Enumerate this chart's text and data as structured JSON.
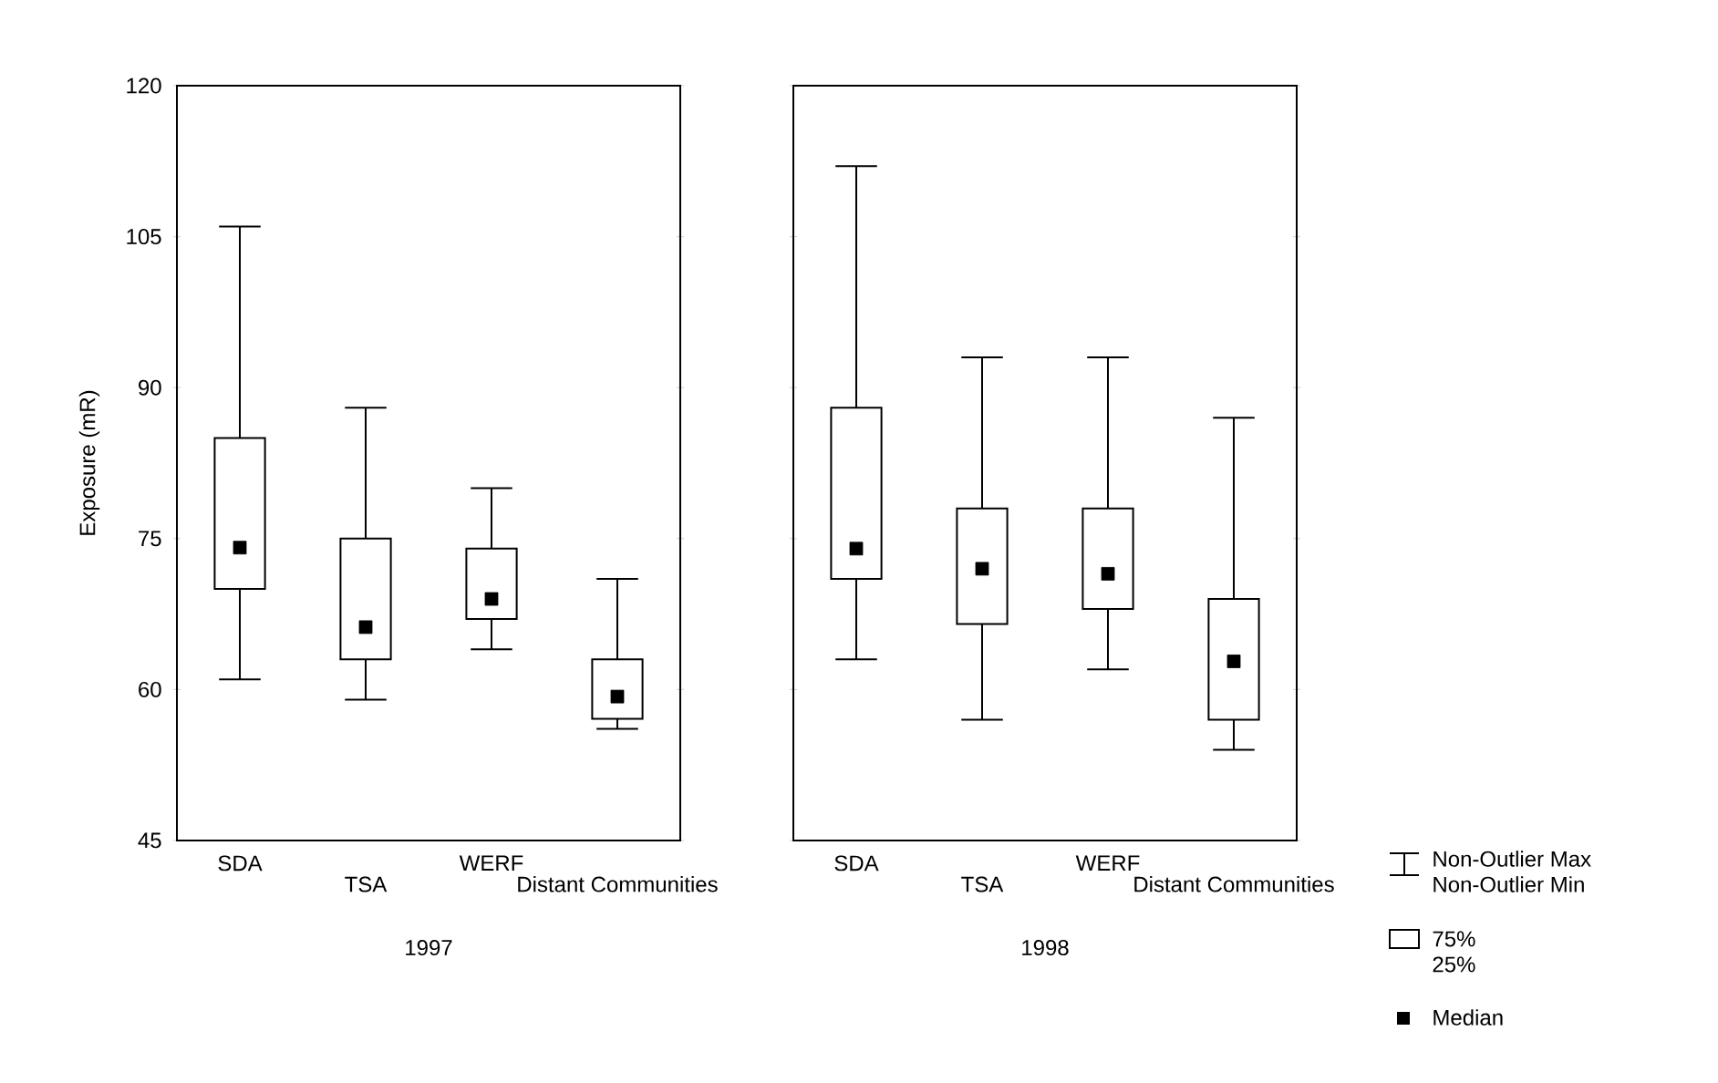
{
  "chart_data": [
    {
      "type": "box",
      "categories": [
        "SDA",
        "TSA",
        "WERF",
        "Distant Communities"
      ],
      "xlabel": "1997",
      "ylabel": "Exposure (mR)",
      "ylim": [
        45,
        120
      ],
      "yticks": [
        45,
        60,
        75,
        90,
        105,
        120
      ],
      "boxes": [
        {
          "low": 61,
          "q1": 70,
          "median": 74.1,
          "q3": 85,
          "high": 106
        },
        {
          "low": 59,
          "q1": 63,
          "median": 66.2,
          "q3": 75,
          "high": 88
        },
        {
          "low": 64,
          "q1": 67,
          "median": 69,
          "q3": 74,
          "high": 80
        },
        {
          "low": 56.1,
          "q1": 57.1,
          "median": 59.3,
          "q3": 63,
          "high": 71
        }
      ]
    },
    {
      "type": "box",
      "categories": [
        "SDA",
        "TSA",
        "WERF",
        "Distant Communities"
      ],
      "xlabel": "1998",
      "ylim": [
        45,
        120
      ],
      "yticks": [
        45,
        60,
        75,
        90,
        105,
        120
      ],
      "tick_labels": "x",
      "boxes": [
        {
          "low": 63,
          "q1": 71,
          "median": 74,
          "q3": 88,
          "high": 112
        },
        {
          "low": 57,
          "q1": 66.5,
          "median": 72,
          "q3": 78,
          "high": 93
        },
        {
          "low": 62,
          "q1": 68,
          "median": 71.5,
          "q3": 78,
          "high": 93
        },
        {
          "low": 54,
          "q1": 57,
          "median": 62.8,
          "q3": 69,
          "high": 87
        }
      ],
      "annotations": [
        "Non-Outlier Max",
        "Non-Outlier Min",
        "75%",
        "25%",
        "Median"
      ]
    }
  ]
}
